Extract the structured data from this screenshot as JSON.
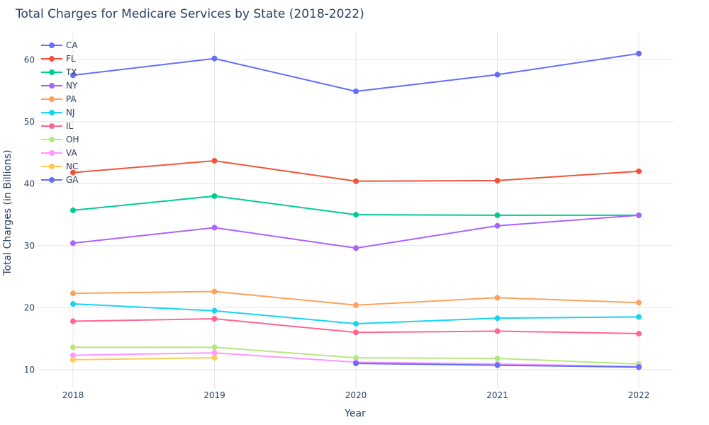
{
  "chart_data": {
    "type": "line",
    "title": "Total Charges for Medicare Services by State (2018-2022)",
    "xlabel": "Year",
    "ylabel": "Total Charges (in Billions)",
    "x": [
      "2018",
      "2019",
      "2020",
      "2021",
      "2022"
    ],
    "ylim": [
      7,
      64.5
    ],
    "yticks": [
      10,
      20,
      30,
      40,
      50,
      60
    ],
    "grid": true,
    "legend_position": "top-left",
    "series": [
      {
        "name": "CA",
        "color": "#636efa",
        "values": [
          57.5,
          60.2,
          54.9,
          57.6,
          61.0
        ]
      },
      {
        "name": "FL",
        "color": "#EF553B",
        "values": [
          41.8,
          43.7,
          40.4,
          40.5,
          42.0
        ]
      },
      {
        "name": "TX",
        "color": "#00cc96",
        "values": [
          35.7,
          38.0,
          35.0,
          34.9,
          34.9
        ]
      },
      {
        "name": "NY",
        "color": "#ab63fa",
        "values": [
          30.4,
          32.9,
          29.6,
          33.2,
          34.9
        ]
      },
      {
        "name": "PA",
        "color": "#FFA15A",
        "values": [
          22.3,
          22.6,
          20.4,
          21.6,
          20.8
        ]
      },
      {
        "name": "NJ",
        "color": "#19d3f3",
        "values": [
          20.6,
          19.5,
          17.4,
          18.3,
          18.5
        ]
      },
      {
        "name": "IL",
        "color": "#FF6692",
        "values": [
          17.8,
          18.2,
          16.0,
          16.2,
          15.8
        ]
      },
      {
        "name": "OH",
        "color": "#B6E880",
        "values": [
          13.6,
          13.6,
          11.9,
          11.8,
          10.9
        ]
      },
      {
        "name": "VA",
        "color": "#FF97FF",
        "values": [
          12.3,
          12.7,
          11.2,
          10.9,
          10.5
        ]
      },
      {
        "name": "NC",
        "color": "#FECB52",
        "values": [
          11.6,
          11.9,
          null,
          null,
          null
        ]
      },
      {
        "name": "GA",
        "color": "#636efa",
        "values": [
          null,
          null,
          11.0,
          10.7,
          10.4
        ]
      }
    ]
  }
}
